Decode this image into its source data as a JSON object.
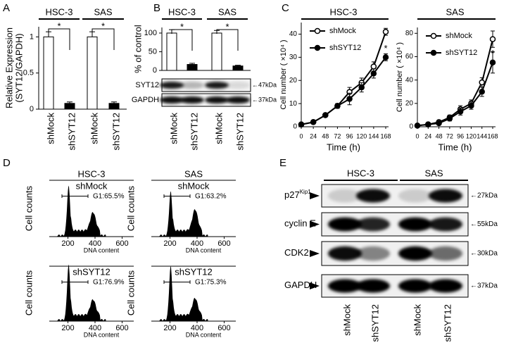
{
  "panel_labels": [
    "A",
    "B",
    "C",
    "D",
    "E"
  ],
  "chart_data": [
    {
      "type": "bar",
      "groups": [
        "HSC-3",
        "SAS"
      ],
      "y_label": [
        "Relative Expression",
        "(SYT12/GAPDH)"
      ],
      "categories": [
        "shMock",
        "shSYT12",
        "shMock",
        "shSYT12"
      ],
      "values": [
        1,
        0.08,
        1,
        0.08
      ],
      "errors": [
        0.07,
        0.02,
        0.07,
        0.02
      ],
      "color": [
        "#ffffff",
        "#000000",
        "#ffffff",
        "#000000"
      ],
      "ylim": [
        0,
        1.14
      ],
      "yticks": [
        0,
        0.5,
        1
      ],
      "annotations": [
        "*",
        "*"
      ]
    },
    {
      "type": "bar",
      "groups": [
        "HSC-3",
        "SAS"
      ],
      "y_label": [
        "% of control"
      ],
      "categories": [
        "shMock",
        "shSYT12",
        "shMock",
        "shSYT12"
      ],
      "values": [
        100,
        16,
        100,
        12
      ],
      "errors": [
        9,
        3,
        7,
        2
      ],
      "color": [
        "#ffffff",
        "#000000",
        "#ffffff",
        "#000000"
      ],
      "ylim": [
        0,
        115
      ],
      "yticks": [
        0,
        50,
        100
      ],
      "annotations": [
        "*",
        "*"
      ],
      "blot": {
        "rows": [
          "SYT12",
          "GAPDH"
        ],
        "sizes": [
          "←47kDa",
          "←37kDa"
        ]
      }
    },
    {
      "type": "line",
      "title": "HSC-3",
      "x": [
        0,
        24,
        48,
        72,
        96,
        120,
        144,
        168
      ],
      "series": [
        {
          "name": "shMock",
          "color": "#ffffff",
          "values": [
            1,
            2,
            5,
            9,
            15,
            19,
            26,
            41
          ],
          "errors": [
            0.3,
            0.4,
            0.6,
            1,
            2,
            2,
            2,
            1.5
          ]
        },
        {
          "name": "shSYT12",
          "color": "#000000",
          "values": [
            1,
            2,
            5,
            9,
            12,
            17,
            23,
            30
          ],
          "errors": [
            0.3,
            0.4,
            0.6,
            1,
            2.5,
            2,
            2,
            1.5
          ]
        }
      ],
      "x_label": "Time (h)",
      "y_label": "Cell number ( ×10⁴ )",
      "xlim": [
        0,
        168
      ],
      "xticks": [
        0,
        24,
        48,
        72,
        96,
        120,
        144,
        168
      ],
      "ylim": [
        0,
        45
      ],
      "yticks": [
        0,
        10,
        20,
        30,
        40
      ],
      "annotations": [
        "*"
      ]
    },
    {
      "type": "line",
      "title": "SAS",
      "x": [
        0,
        24,
        48,
        72,
        96,
        120,
        144,
        168
      ],
      "series": [
        {
          "name": "shMock",
          "color": "#ffffff",
          "values": [
            1,
            2,
            4,
            8,
            15,
            20,
            38,
            75
          ],
          "errors": [
            0.5,
            0.8,
            1,
            2,
            3,
            3,
            4,
            7
          ]
        },
        {
          "name": "shSYT12",
          "color": "#000000",
          "values": [
            1,
            2,
            3,
            7,
            13,
            18,
            30,
            55
          ],
          "errors": [
            0.5,
            0.8,
            1,
            2,
            3,
            3,
            4,
            9
          ]
        }
      ],
      "x_label": "Time (h)",
      "y_label": "Cell number ( ×10⁴ )",
      "xlim": [
        0,
        168
      ],
      "xticks": [
        0,
        24,
        48,
        72,
        96,
        120,
        144,
        168
      ],
      "ylim": [
        0,
        85
      ],
      "yticks": [
        0,
        20,
        40,
        60,
        80
      ],
      "annotations": [
        "*"
      ]
    }
  ],
  "flow": {
    "y_label": "Cell counts",
    "x_label": "DNA content",
    "xticks": [
      200,
      400,
      600
    ],
    "panels": [
      {
        "title": "HSC-3",
        "condition": "shMock",
        "gate": "G1:65.5%"
      },
      {
        "title": "SAS",
        "condition": "shMock",
        "gate": "G1:63.2%"
      },
      {
        "condition": "shSYT12",
        "gate": "G1:76.9%"
      },
      {
        "condition": "shSYT12",
        "gate": "G1:75.3%"
      }
    ]
  },
  "blot_e": {
    "groups": [
      "HSC-3",
      "SAS"
    ],
    "rows": [
      {
        "name": "p27",
        "sup": "Kip1",
        "size": "←27kDa"
      },
      {
        "name": "cyclin E",
        "size": "←55kDa"
      },
      {
        "name": "CDK2",
        "size": "←30kDa"
      },
      {
        "name": "GAPDH",
        "size": "←37kDa"
      }
    ],
    "lanes": [
      "shMock",
      "shSYT12",
      "shMock",
      "shSYT12"
    ]
  }
}
